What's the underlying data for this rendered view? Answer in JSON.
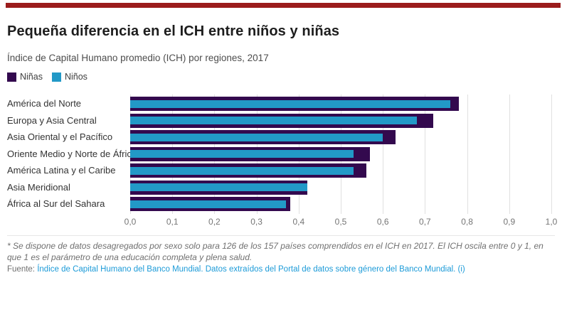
{
  "accent_bar_color": "#9B1C1C",
  "header": {
    "title": "Pequeña diferencia en el ICH entre niños y niñas",
    "subtitle": "Índice de Capital Humano promedio (ICH) por regiones, 2017"
  },
  "legend": [
    {
      "label": "Niñas",
      "color": "#33094E"
    },
    {
      "label": "Niños",
      "color": "#2299C7"
    }
  ],
  "chart_data": {
    "type": "bar",
    "orientation": "horizontal",
    "title": "Pequeña diferencia en el ICH entre niños y niñas",
    "subtitle": "Índice de Capital Humano promedio (ICH) por regiones, 2017",
    "categories": [
      "América del Norte",
      "Europa y Asia Central",
      "Asia Oriental y el Pacífico",
      "Oriente Medio y Norte de África",
      "América Latina y el Caribe",
      "Asia Meridional",
      "África al Sur del Sahara"
    ],
    "series": [
      {
        "name": "Niñas",
        "color": "#33094E",
        "values": [
          0.78,
          0.72,
          0.63,
          0.57,
          0.56,
          0.42,
          0.38
        ]
      },
      {
        "name": "Niños",
        "color": "#2299C7",
        "values": [
          0.76,
          0.68,
          0.6,
          0.53,
          0.53,
          0.42,
          0.37
        ]
      }
    ],
    "xlim": [
      0,
      1
    ],
    "x_tick_values": [
      0,
      0.1,
      0.2,
      0.3,
      0.4,
      0.5,
      0.6,
      0.7,
      0.8,
      0.9,
      1.0
    ],
    "x_ticks": [
      "0,0",
      "0,1",
      "0,2",
      "0,3",
      "0,4",
      "0,5",
      "0,6",
      "0,7",
      "0,8",
      "0,9",
      "1,0"
    ],
    "grid": true,
    "legend_position": "top-left"
  },
  "footnote": "* Se dispone de datos desagregados por sexo solo para 126 de los 157 países comprendidos en el ICH en 2017. El ICH oscila entre 0 y 1, en que 1 es el parámetro de una educación completa y plena salud.",
  "source": {
    "prefix": "Fuente: ",
    "link_text": "Índice de Capital Humano del Banco Mundial. Datos extraídos del Portal de datos sobre género del Banco Mundial. (i)",
    "link_color": "#1D9BD8"
  }
}
